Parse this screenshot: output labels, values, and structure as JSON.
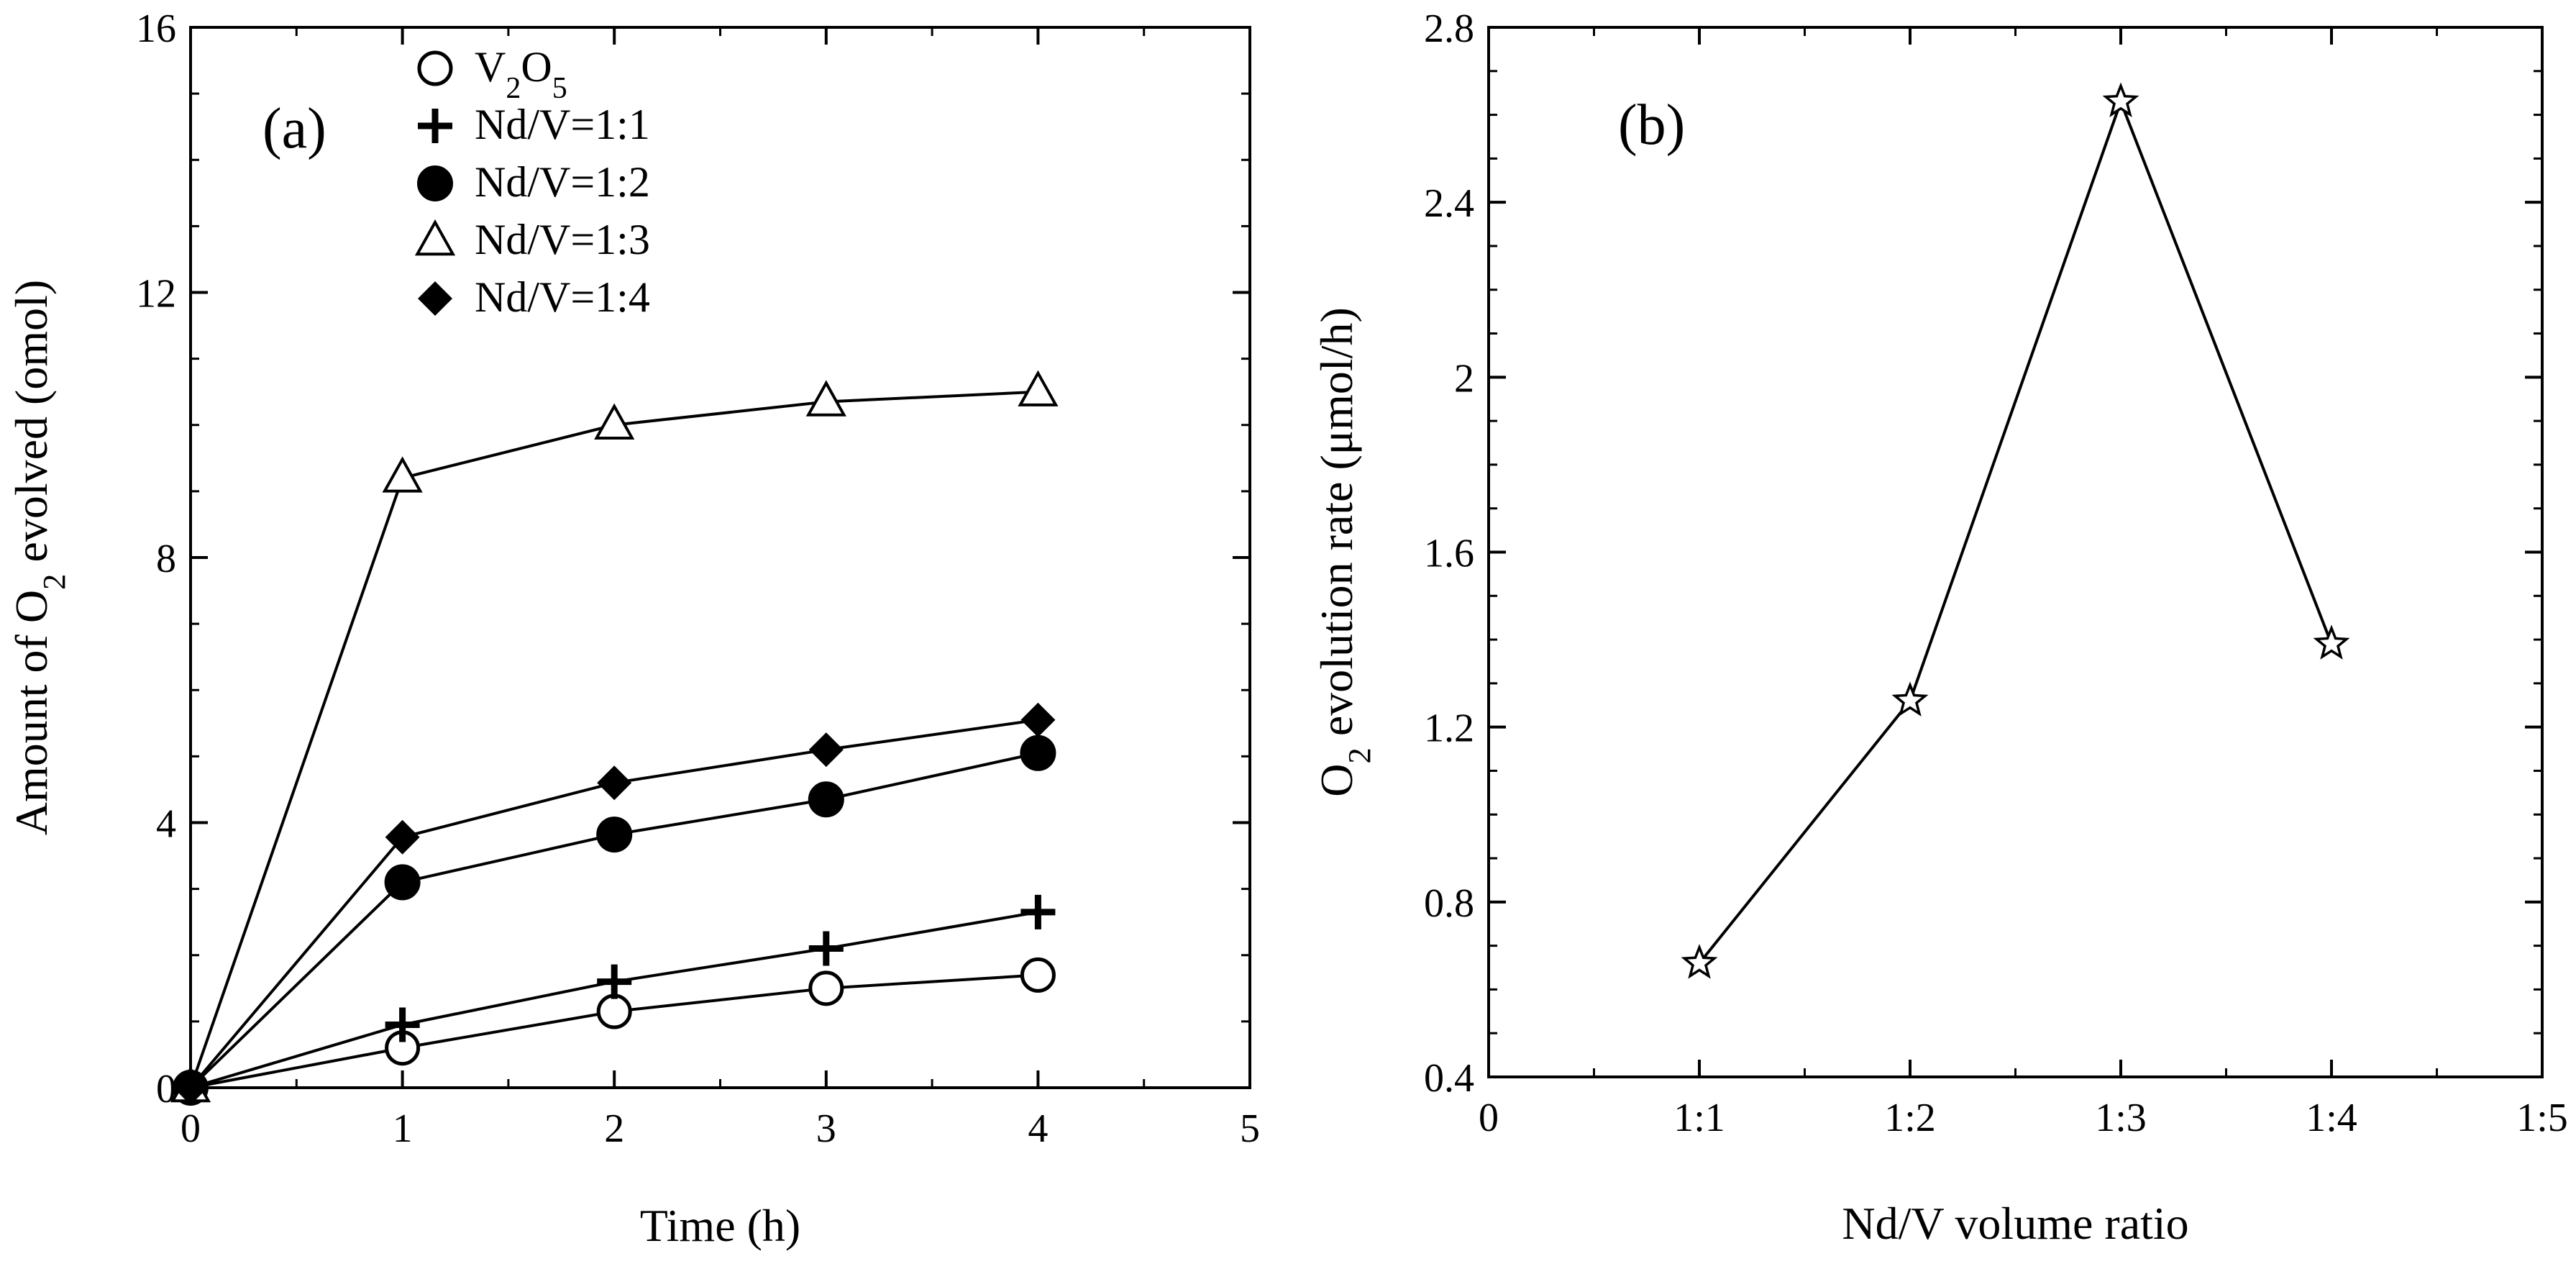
{
  "chart_data": [
    {
      "type": "line",
      "panel_label": "(a)",
      "xlabel": "Time (h)",
      "ylabel": {
        "prefix": "Amount of O",
        "sub": "2",
        "suffix": " evolved (omol)"
      },
      "xlim": [
        0,
        5
      ],
      "ylim": [
        0,
        16
      ],
      "x_ticks": [
        0,
        1,
        2,
        3,
        4,
        5
      ],
      "y_ticks": [
        0,
        4,
        8,
        12,
        16
      ],
      "x_tick_labels": [
        "0",
        "1",
        "2",
        "3",
        "4",
        "5"
      ],
      "y_tick_labels": [
        "0",
        "4",
        "8",
        "12",
        "16"
      ],
      "x": [
        0,
        1,
        2,
        3,
        4
      ],
      "legend_position": "top-center",
      "series": [
        {
          "name": "V2O5",
          "label_parts": [
            "V",
            "2",
            "O",
            "5"
          ],
          "marker": "circle-open",
          "values": [
            0,
            0.6,
            1.15,
            1.5,
            1.7
          ]
        },
        {
          "name": "Nd/V=1:1",
          "marker": "plus",
          "values": [
            0,
            0.95,
            1.6,
            2.1,
            2.65
          ]
        },
        {
          "name": "Nd/V=1:2",
          "marker": "circle-filled",
          "values": [
            0,
            3.1,
            3.82,
            4.35,
            5.05
          ]
        },
        {
          "name": "Nd/V=1:3",
          "marker": "triangle-open",
          "values": [
            0,
            9.2,
            10.0,
            10.35,
            10.5
          ]
        },
        {
          "name": "Nd/V=1:4",
          "marker": "diamond-filled",
          "values": [
            0,
            3.78,
            4.6,
            5.1,
            5.55
          ]
        }
      ]
    },
    {
      "type": "line",
      "panel_label": "(b)",
      "xlabel": "Nd/V volume ratio",
      "ylabel": {
        "prefix": "O",
        "sub": "2",
        "suffix": " evolution rate (μmol/h)"
      },
      "xlim": [
        0,
        5
      ],
      "ylim": [
        0.4,
        2.8
      ],
      "x_ticks": [
        0,
        1,
        2,
        3,
        4,
        5
      ],
      "x_tick_labels": [
        "0",
        "1:1",
        "1:2",
        "1:3",
        "1:4",
        "1:5"
      ],
      "y_ticks": [
        0.4,
        0.8,
        1.2,
        1.6,
        2.0,
        2.4,
        2.8
      ],
      "y_tick_labels": [
        "0.4",
        "0.8",
        "1.2",
        "1.6",
        "2",
        "2.4",
        "2.8"
      ],
      "categories": [
        "1:1",
        "1:2",
        "1:3",
        "1:4"
      ],
      "x": [
        1,
        2,
        3,
        4
      ],
      "series": [
        {
          "name": "O2 evolution rate",
          "marker": "star-open",
          "values": [
            0.66,
            1.26,
            2.63,
            1.39
          ]
        }
      ]
    }
  ]
}
